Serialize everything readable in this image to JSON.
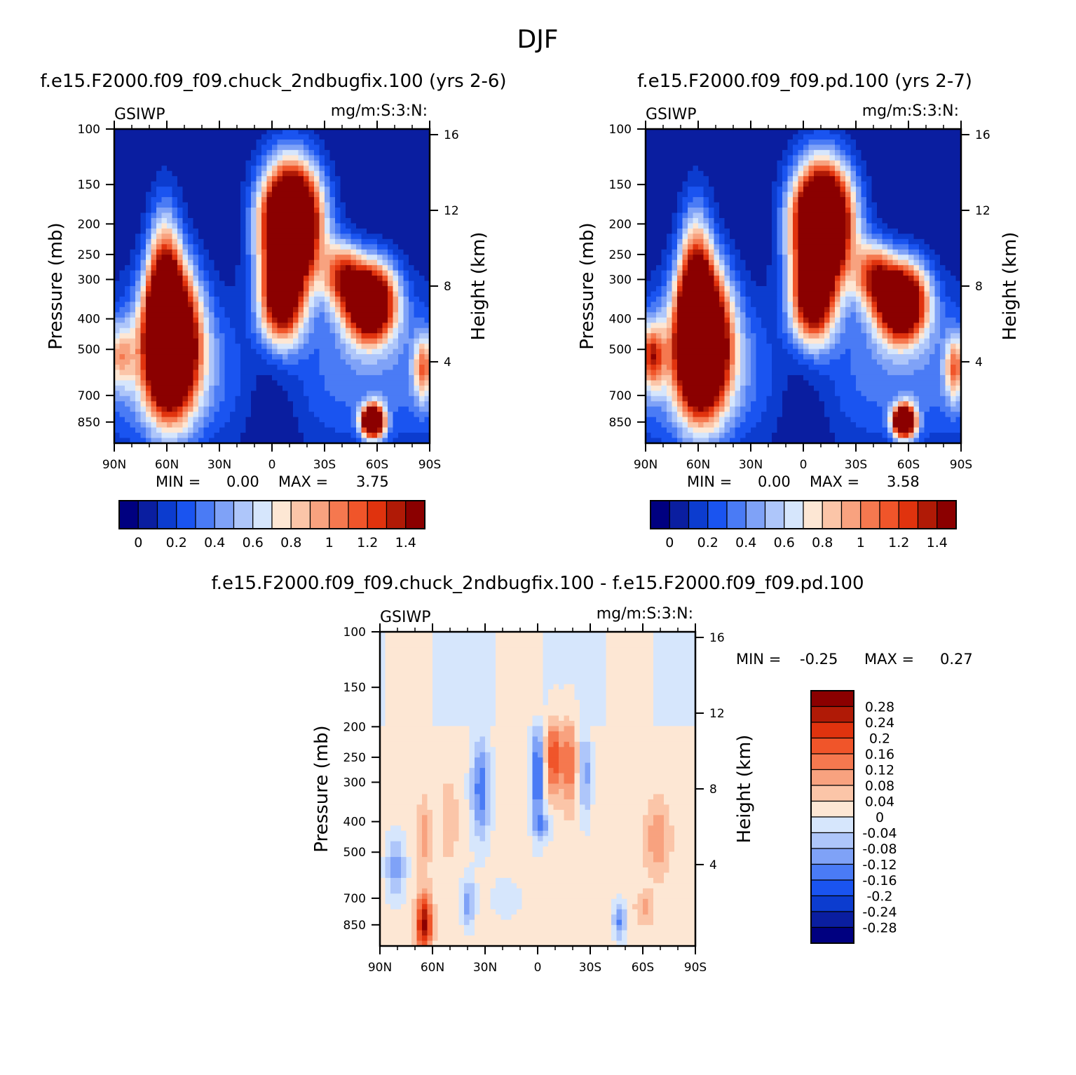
{
  "figure_title": "DJF",
  "colors": {
    "cmap_top": [
      "#000080",
      "#0a1ea0",
      "#0c3ccf",
      "#1a54f0",
      "#4a7bf5",
      "#7fa2f7",
      "#aec6fa",
      "#d6e6fc",
      "#fde7d4",
      "#fbc5a8",
      "#f8a27f",
      "#f5784f",
      "#f0552a",
      "#e0330e",
      "#b01a06",
      "#8b0000"
    ],
    "cmap_diff": [
      "#000080",
      "#0a1ea0",
      "#0c3ccf",
      "#1a54f0",
      "#4a7bf5",
      "#7fa2f7",
      "#aec6fa",
      "#d6e6fc",
      "#fde7d4",
      "#fbc5a8",
      "#f8a27f",
      "#f5784f",
      "#f0552a",
      "#e0330e",
      "#b01a06",
      "#8b0000"
    ]
  },
  "chart_data": [
    {
      "type": "heatmap",
      "title": "f.e15.F2000.f09_f09.chuck_2ndbugfix.100 (yrs 2-6)",
      "variable": "GSIWP",
      "units": "mg/m:S:3:N:",
      "ylabel": "Pressure (mb)",
      "ylabel_right": "Height (km)",
      "x_ticks": [
        "90N",
        "60N",
        "30N",
        "0",
        "30S",
        "60S",
        "90S"
      ],
      "y_ticks": [
        "100",
        "150",
        "200",
        "250",
        "300",
        "400",
        "500",
        "700",
        "850"
      ],
      "y_ticks_right": [
        "16",
        "12",
        "8",
        "4"
      ],
      "min_label": "MIN =",
      "min_value": "0.00",
      "max_label": "MAX =",
      "max_value": "3.75",
      "colorbar_labels": [
        "0",
        "0.2",
        "0.4",
        "0.6",
        "0.8",
        "1",
        "1.2",
        "1.4"
      ],
      "levels": [
        0,
        0.1,
        0.2,
        0.3,
        0.4,
        0.5,
        0.6,
        0.7,
        0.8,
        0.9,
        1.0,
        1.1,
        1.2,
        1.3,
        1.4
      ]
    },
    {
      "type": "heatmap",
      "title": "f.e15.F2000.f09_f09.pd.100 (yrs 2-7)",
      "variable": "GSIWP",
      "units": "mg/m:S:3:N:",
      "ylabel": "Pressure (mb)",
      "ylabel_right": "Height (km)",
      "x_ticks": [
        "90N",
        "60N",
        "30N",
        "0",
        "30S",
        "60S",
        "90S"
      ],
      "y_ticks": [
        "100",
        "150",
        "200",
        "250",
        "300",
        "400",
        "500",
        "700",
        "850"
      ],
      "y_ticks_right": [
        "16",
        "12",
        "8",
        "4"
      ],
      "min_label": "MIN =",
      "min_value": "0.00",
      "max_label": "MAX =",
      "max_value": "3.58",
      "colorbar_labels": [
        "0",
        "0.2",
        "0.4",
        "0.6",
        "0.8",
        "1",
        "1.2",
        "1.4"
      ],
      "levels": [
        0,
        0.1,
        0.2,
        0.3,
        0.4,
        0.5,
        0.6,
        0.7,
        0.8,
        0.9,
        1.0,
        1.1,
        1.2,
        1.3,
        1.4
      ]
    },
    {
      "type": "heatmap",
      "title": "f.e15.F2000.f09_f09.chuck_2ndbugfix.100 - f.e15.F2000.f09_f09.pd.100",
      "variable": "GSIWP",
      "units": "mg/m:S:3:N:",
      "ylabel": "Pressure (mb)",
      "ylabel_right": "Height (km)",
      "x_ticks": [
        "90N",
        "60N",
        "30N",
        "0",
        "30S",
        "60S",
        "90S"
      ],
      "y_ticks": [
        "100",
        "150",
        "200",
        "250",
        "300",
        "400",
        "500",
        "700",
        "850"
      ],
      "y_ticks_right": [
        "16",
        "12",
        "8",
        "4"
      ],
      "min_label": "MIN =",
      "min_value": "-0.25",
      "max_label": "MAX =",
      "max_value": "0.27",
      "colorbar_labels": [
        "0.28",
        "0.24",
        "0.2",
        "0.16",
        "0.12",
        "0.08",
        "0.04",
        "0",
        "-0.04",
        "-0.08",
        "-0.12",
        "-0.16",
        "-0.2",
        "-0.24",
        "-0.28"
      ],
      "levels": [
        -0.28,
        -0.24,
        -0.2,
        -0.16,
        -0.12,
        -0.08,
        -0.04,
        0,
        0.04,
        0.08,
        0.12,
        0.16,
        0.2,
        0.24,
        0.28
      ]
    }
  ]
}
